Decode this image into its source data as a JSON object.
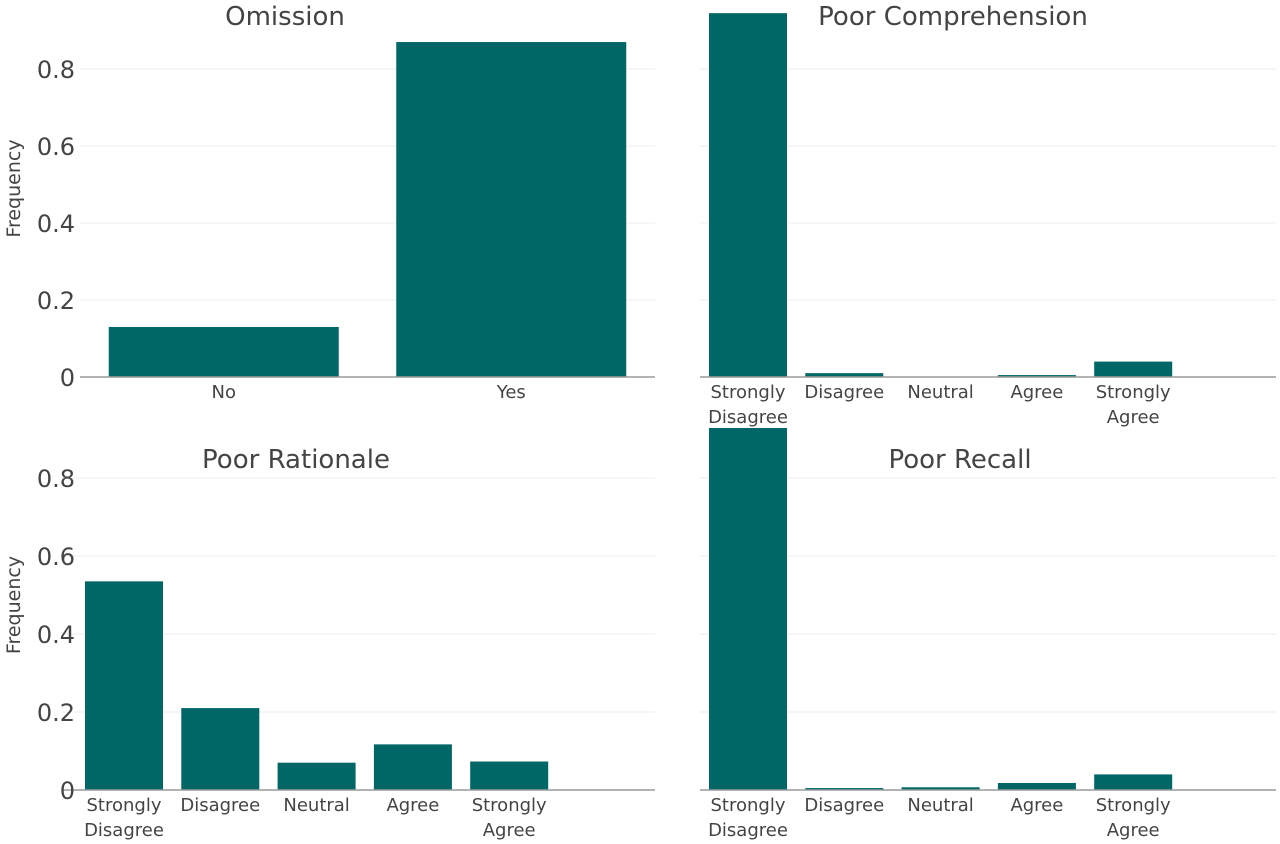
{
  "chart_data": [
    {
      "type": "bar",
      "title": "Omission",
      "ylabel": "Frequency",
      "categories": [
        "No",
        "Yes"
      ],
      "values": [
        0.13,
        0.87
      ],
      "ylim": [
        0,
        0.9
      ],
      "yticks": [
        "0",
        "0.2",
        "0.4",
        "0.6",
        "0.8"
      ],
      "color": "#006666",
      "grid": true
    },
    {
      "type": "bar",
      "title": "Poor Comprehension",
      "ylabel": "",
      "categories": [
        [
          "Strongly",
          "Disagree"
        ],
        [
          "Disagree"
        ],
        [
          "Neutral"
        ],
        [
          "Agree"
        ],
        [
          "Strongly",
          "Agree"
        ]
      ],
      "values": [
        0.945,
        0.01,
        0.0,
        0.005,
        0.04
      ],
      "ylim": [
        0,
        0.9
      ],
      "yticks": [],
      "color": "#006666",
      "grid": true
    },
    {
      "type": "bar",
      "title": "Poor Rationale",
      "ylabel": "Frequency",
      "categories": [
        [
          "Strongly",
          "Disagree"
        ],
        [
          "Disagree"
        ],
        [
          "Neutral"
        ],
        [
          "Agree"
        ],
        [
          "Strongly",
          "Agree"
        ]
      ],
      "values": [
        0.535,
        0.21,
        0.07,
        0.117,
        0.073
      ],
      "ylim": [
        0,
        0.9
      ],
      "yticks": [
        "0",
        "0.2",
        "0.4",
        "0.6",
        "0.8"
      ],
      "color": "#006666",
      "grid": true
    },
    {
      "type": "bar",
      "title": "Poor Recall",
      "ylabel": "",
      "categories": [
        [
          "Strongly",
          "Disagree"
        ],
        [
          "Disagree"
        ],
        [
          "Neutral"
        ],
        [
          "Agree"
        ],
        [
          "Strongly",
          "Agree"
        ]
      ],
      "values": [
        0.94,
        0.005,
        0.007,
        0.018,
        0.04
      ],
      "ylim": [
        0,
        0.9
      ],
      "yticks": [],
      "color": "#006666",
      "grid": true
    }
  ]
}
